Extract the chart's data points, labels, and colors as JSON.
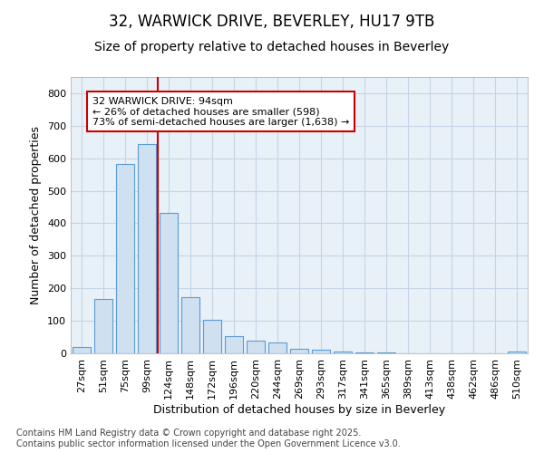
{
  "title_line1": "32, WARWICK DRIVE, BEVERLEY, HU17 9TB",
  "title_line2": "Size of property relative to detached houses in Beverley",
  "xlabel": "Distribution of detached houses by size in Beverley",
  "ylabel": "Number of detached properties",
  "categories": [
    "27sqm",
    "51sqm",
    "75sqm",
    "99sqm",
    "124sqm",
    "148sqm",
    "172sqm",
    "196sqm",
    "220sqm",
    "244sqm",
    "269sqm",
    "293sqm",
    "317sqm",
    "341sqm",
    "365sqm",
    "389sqm",
    "413sqm",
    "438sqm",
    "462sqm",
    "486sqm",
    "510sqm"
  ],
  "values": [
    20,
    168,
    582,
    643,
    432,
    172,
    104,
    52,
    40,
    33,
    14,
    11,
    5,
    2,
    2,
    0,
    0,
    0,
    0,
    0,
    5
  ],
  "bar_color": "#cfe0f0",
  "bar_edge_color": "#5b9bd5",
  "grid_color": "#c5d5e5",
  "bg_color": "#e8f0f8",
  "fig_color": "#ffffff",
  "vline_x_bar": 3,
  "vline_color": "#cc0000",
  "annotation_text": "32 WARWICK DRIVE: 94sqm\n← 26% of detached houses are smaller (598)\n73% of semi-detached houses are larger (1,638) →",
  "annotation_box_color": "#ffffff",
  "annotation_box_edge": "#cc0000",
  "ylim": [
    0,
    850
  ],
  "yticks": [
    0,
    100,
    200,
    300,
    400,
    500,
    600,
    700,
    800
  ],
  "footer_line1": "Contains HM Land Registry data © Crown copyright and database right 2025.",
  "footer_line2": "Contains public sector information licensed under the Open Government Licence v3.0.",
  "title_fontsize": 12,
  "subtitle_fontsize": 10,
  "axis_label_fontsize": 9,
  "tick_fontsize": 8,
  "footer_fontsize": 7,
  "annotation_fontsize": 8
}
